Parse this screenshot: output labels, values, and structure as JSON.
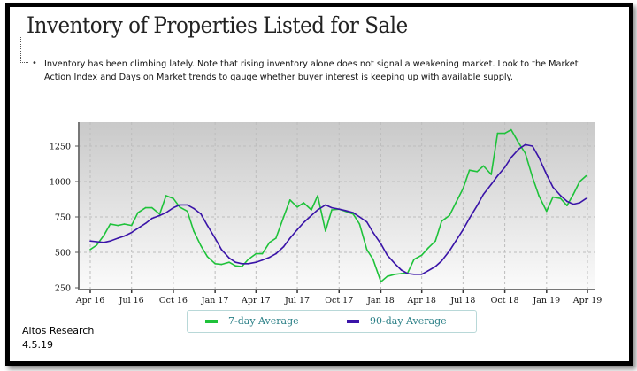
{
  "title": "Inventory of Properties Listed for Sale",
  "description": "Inventory has been climbing lately. Note that rising inventory alone does not signal a weakening market. Look to the Market Action Index and Days on Market trends to gauge whether buyer interest is keeping up with available supply.",
  "bullet": "•",
  "source": {
    "name": "Altos Research",
    "date": "4.5.19"
  },
  "chart_data": {
    "type": "line",
    "title": "",
    "xlabel": "",
    "ylabel": "",
    "ylim": [
      250,
      1420
    ],
    "xlim": [
      "2016-03-20",
      "2019-04-10"
    ],
    "grid": true,
    "legend_position": "bottom-center",
    "y_ticks": [
      250,
      500,
      750,
      1000,
      1250
    ],
    "x_ticks": [
      {
        "date": "2016-04-01",
        "label": "Apr 16"
      },
      {
        "date": "2016-07-01",
        "label": "Jul 16"
      },
      {
        "date": "2016-10-01",
        "label": "Oct 16"
      },
      {
        "date": "2017-01-01",
        "label": "Jan 17"
      },
      {
        "date": "2017-04-01",
        "label": "Apr 17"
      },
      {
        "date": "2017-07-01",
        "label": "Jul 17"
      },
      {
        "date": "2017-10-01",
        "label": "Oct 17"
      },
      {
        "date": "2018-01-01",
        "label": "Jan 18"
      },
      {
        "date": "2018-04-01",
        "label": "Apr 18"
      },
      {
        "date": "2018-07-01",
        "label": "Jul 18"
      },
      {
        "date": "2018-10-01",
        "label": "Oct 18"
      },
      {
        "date": "2019-01-01",
        "label": "Jan 19"
      },
      {
        "date": "2019-04-01",
        "label": "Apr 19"
      }
    ],
    "x": [
      "2016-04-01",
      "2016-04-15",
      "2016-05-01",
      "2016-05-15",
      "2016-06-01",
      "2016-06-15",
      "2016-07-01",
      "2016-07-15",
      "2016-08-01",
      "2016-08-15",
      "2016-09-01",
      "2016-09-15",
      "2016-10-01",
      "2016-10-15",
      "2016-11-01",
      "2016-11-15",
      "2016-12-01",
      "2016-12-15",
      "2017-01-01",
      "2017-01-15",
      "2017-02-01",
      "2017-02-15",
      "2017-03-01",
      "2017-03-15",
      "2017-04-01",
      "2017-04-15",
      "2017-05-01",
      "2017-05-15",
      "2017-06-01",
      "2017-06-15",
      "2017-07-01",
      "2017-07-15",
      "2017-08-01",
      "2017-08-15",
      "2017-09-01",
      "2017-09-15",
      "2017-10-01",
      "2017-10-15",
      "2017-11-01",
      "2017-11-15",
      "2017-12-01",
      "2017-12-15",
      "2018-01-01",
      "2018-01-15",
      "2018-02-01",
      "2018-02-15",
      "2018-03-01",
      "2018-03-15",
      "2018-04-01",
      "2018-04-15",
      "2018-05-01",
      "2018-05-15",
      "2018-06-01",
      "2018-06-15",
      "2018-07-01",
      "2018-07-15",
      "2018-08-01",
      "2018-08-15",
      "2018-09-01",
      "2018-09-15",
      "2018-10-01",
      "2018-10-15",
      "2018-11-01",
      "2018-11-15",
      "2018-12-01",
      "2018-12-15",
      "2019-01-01",
      "2019-01-15",
      "2019-02-01",
      "2019-02-15",
      "2019-03-01",
      "2019-03-15",
      "2019-03-29"
    ],
    "series": [
      {
        "name": "7-day Average",
        "color": "#1ec23a",
        "values": [
          520,
          550,
          620,
          700,
          690,
          700,
          690,
          780,
          815,
          815,
          770,
          900,
          880,
          820,
          790,
          650,
          545,
          470,
          420,
          415,
          430,
          405,
          400,
          450,
          490,
          490,
          570,
          600,
          750,
          870,
          820,
          850,
          800,
          900,
          650,
          800,
          805,
          790,
          770,
          700,
          520,
          450,
          292,
          330,
          345,
          350,
          355,
          450,
          480,
          530,
          580,
          720,
          760,
          850,
          950,
          1080,
          1070,
          1110,
          1050,
          1340,
          1340,
          1365,
          1270,
          1200,
          1030,
          900,
          790,
          890,
          880,
          830,
          910,
          1000,
          1040
        ]
      },
      {
        "name": "90-day Average",
        "color": "#3a14a8",
        "values": [
          580,
          575,
          570,
          580,
          600,
          615,
          640,
          670,
          705,
          740,
          760,
          780,
          815,
          835,
          835,
          810,
          770,
          690,
          600,
          520,
          460,
          430,
          420,
          420,
          430,
          445,
          465,
          490,
          540,
          600,
          660,
          710,
          760,
          800,
          835,
          815,
          805,
          795,
          780,
          750,
          715,
          640,
          560,
          480,
          420,
          375,
          350,
          345,
          345,
          370,
          400,
          440,
          510,
          580,
          660,
          740,
          830,
          910,
          980,
          1040,
          1100,
          1170,
          1230,
          1260,
          1250,
          1170,
          1050,
          960,
          900,
          860,
          840,
          850,
          880
        ]
      }
    ]
  }
}
